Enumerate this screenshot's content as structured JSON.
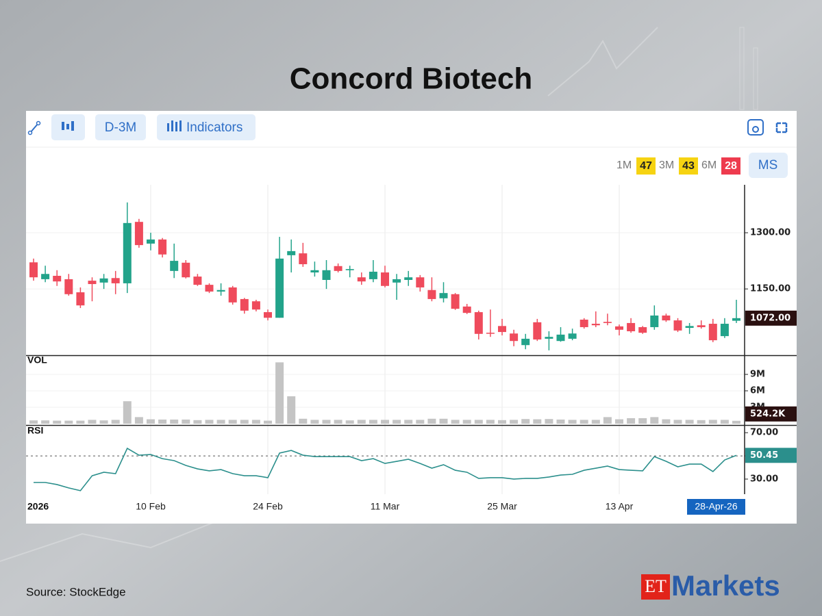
{
  "title": "Concord Biotech",
  "toolbar": {
    "interval": "D-3M",
    "indicators": "Indicators",
    "returns": [
      {
        "label": "1M",
        "value": 47,
        "color": "#f6d312",
        "text_color": "#222222"
      },
      {
        "label": "3M",
        "value": 43,
        "color": "#f6d312",
        "text_color": "#222222"
      },
      {
        "label": "6M",
        "value": 28,
        "color": "#ee3b4e",
        "text_color": "#ffffff"
      }
    ],
    "ms": "MS"
  },
  "source": "Source:  StockEdge",
  "logo": {
    "et": "ET",
    "markets": "Markets"
  },
  "chart_data": [
    {
      "type": "candlestick",
      "up_color": "#22a38a",
      "down_color": "#ef4b5c",
      "categories": [
        "2026",
        null,
        null,
        null,
        null,
        null,
        null,
        null,
        null,
        null,
        "10 Feb",
        null,
        null,
        null,
        null,
        null,
        null,
        null,
        null,
        null,
        "24 Feb",
        null,
        null,
        null,
        null,
        null,
        null,
        null,
        null,
        null,
        "11 Mar",
        null,
        null,
        null,
        null,
        null,
        null,
        null,
        null,
        null,
        "25 Mar",
        null,
        null,
        null,
        null,
        null,
        null,
        null,
        null,
        null,
        "13 Apr",
        null,
        null,
        null,
        null,
        null,
        null,
        null,
        null,
        null,
        "28-Apr-26"
      ],
      "open": [
        1221,
        1176,
        1185,
        1176,
        1141,
        1172,
        1167,
        1179,
        1165,
        1329,
        1271,
        1282,
        1198,
        1220,
        1183,
        1161,
        1143,
        1154,
        1123,
        1117,
        1088,
        1073,
        1240,
        1245,
        1194,
        1174,
        1211,
        1200,
        1181,
        1176,
        1194,
        1167,
        1174,
        1181,
        1147,
        1125,
        1136,
        1103,
        1088,
        1033,
        1051,
        1031,
        1000,
        1061,
        1017,
        1011,
        1017,
        1068,
        1057,
        1062,
        1050,
        1059,
        1048,
        1048,
        1079,
        1066,
        1046,
        1053,
        1057,
        1024,
        1065
      ],
      "high": [
        1231,
        1212,
        1200,
        1190,
        1154,
        1181,
        1190,
        1198,
        1381,
        1337,
        1300,
        1286,
        1271,
        1227,
        1190,
        1165,
        1165,
        1158,
        1126,
        1121,
        1095,
        1289,
        1282,
        1273,
        1223,
        1227,
        1218,
        1212,
        1194,
        1227,
        1212,
        1190,
        1198,
        1187,
        1181,
        1168,
        1139,
        1110,
        1092,
        1095,
        1070,
        1041,
        1030,
        1070,
        1037,
        1048,
        1044,
        1072,
        1090,
        1084,
        1055,
        1072,
        1051,
        1106,
        1084,
        1072,
        1059,
        1066,
        1070,
        1072,
        1121
      ],
      "low": [
        1172,
        1168,
        1158,
        1132,
        1099,
        1117,
        1150,
        1136,
        1139,
        1260,
        1253,
        1234,
        1179,
        1178,
        1158,
        1139,
        1132,
        1108,
        1084,
        1090,
        1066,
        1073,
        1194,
        1209,
        1183,
        1150,
        1194,
        1181,
        1161,
        1168,
        1154,
        1121,
        1158,
        1143,
        1117,
        1114,
        1094,
        1083,
        1015,
        1022,
        1026,
        997,
        989,
        1011,
        986,
        1009,
        1013,
        1044,
        1048,
        1053,
        1026,
        1033,
        1030,
        1041,
        1062,
        1035,
        1030,
        1044,
        1008,
        1019,
        1059
      ],
      "close": [
        1181,
        1190,
        1170,
        1136,
        1106,
        1163,
        1178,
        1165,
        1326,
        1267,
        1282,
        1242,
        1225,
        1181,
        1161,
        1143,
        1147,
        1114,
        1092,
        1095,
        1073,
        1231,
        1251,
        1216,
        1200,
        1200,
        1198,
        1203,
        1170,
        1196,
        1158,
        1176,
        1181,
        1154,
        1123,
        1139,
        1097,
        1086,
        1030,
        1031,
        1035,
        1011,
        1017,
        1015,
        1022,
        1028,
        1031,
        1048,
        1053,
        1059,
        1041,
        1037,
        1033,
        1079,
        1066,
        1039,
        1051,
        1048,
        1013,
        1057,
        1072
      ],
      "ylim": [
        973,
        1428
      ],
      "yticks": [
        {
          "value": 1150,
          "label": "1150.00"
        },
        {
          "value": 1300,
          "label": "1300.00"
        }
      ],
      "last_label": "1072.00",
      "grid": true
    },
    {
      "type": "bar",
      "name": "VOL",
      "color": "#c4c4c4",
      "values": [
        600000,
        600000,
        550000,
        550000,
        550000,
        700000,
        600000,
        700000,
        4100000,
        1200000,
        800000,
        750000,
        750000,
        750000,
        650000,
        700000,
        700000,
        700000,
        700000,
        700000,
        550000,
        11200000,
        5000000,
        900000,
        700000,
        700000,
        700000,
        600000,
        700000,
        700000,
        700000,
        700000,
        700000,
        700000,
        900000,
        900000,
        700000,
        700000,
        700000,
        700000,
        650000,
        700000,
        850000,
        800000,
        850000,
        750000,
        700000,
        700000,
        700000,
        1200000,
        800000,
        1000000,
        1000000,
        1200000,
        800000,
        700000,
        700000,
        650000,
        700000,
        700000,
        524200
      ],
      "ylim": [
        0,
        12000000
      ],
      "yticks": [
        {
          "value": 3000000,
          "label": "3M"
        },
        {
          "value": 6000000,
          "label": "6M"
        },
        {
          "value": 9000000,
          "label": "9M"
        }
      ],
      "last_label": "524.2K",
      "grid": true
    },
    {
      "type": "line",
      "name": "RSI",
      "color": "#2b8f8c",
      "values": [
        27.1,
        27.1,
        25.3,
        22.4,
        20,
        32.9,
        35.9,
        34.7,
        56.5,
        50.6,
        51.2,
        47.6,
        45.9,
        41.8,
        38.8,
        37.1,
        38.2,
        34.7,
        32.9,
        32.9,
        31.2,
        52.4,
        54.7,
        50.6,
        49.4,
        49.4,
        49.4,
        49.4,
        45.9,
        47.6,
        43.5,
        45.3,
        47.1,
        43.5,
        39.4,
        42.4,
        37.6,
        35.9,
        30.6,
        31.2,
        31.2,
        30,
        30.6,
        30.6,
        31.8,
        33.5,
        34.1,
        37.6,
        39.4,
        41.2,
        38.2,
        37.6,
        37.1,
        49.4,
        45.3,
        40.6,
        42.9,
        42.9,
        36.5,
        46.5,
        50.45
      ],
      "ylim": [
        17,
        76
      ],
      "yticks": [
        {
          "value": 30,
          "label": "30.00"
        },
        {
          "value": 50,
          "label": "50.00"
        },
        {
          "value": 70,
          "label": "70.00"
        }
      ],
      "reference_line": 50,
      "last_label": "50.45",
      "grid": false
    }
  ]
}
